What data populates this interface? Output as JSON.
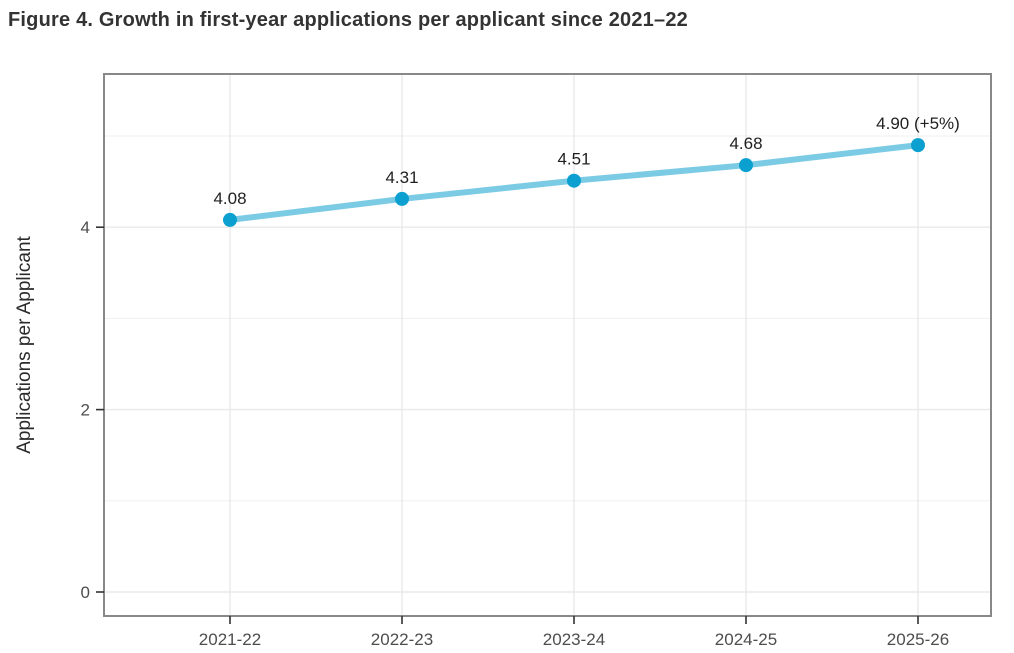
{
  "figure_title": "Figure 4. Growth in first-year applications per applicant since 2021–22",
  "chart_data": {
    "type": "line",
    "title": "Figure 4. Growth in first-year applications per applicant since 2021–22",
    "categories": [
      "2021-22",
      "2022-23",
      "2023-24",
      "2024-25",
      "2025-26"
    ],
    "series": [
      {
        "name": "Applications per Applicant",
        "values": [
          4.08,
          4.31,
          4.51,
          4.68,
          4.9
        ]
      }
    ],
    "point_labels": [
      "4.08",
      "4.31",
      "4.51",
      "4.68",
      "4.90 (+5%)"
    ],
    "xlabel": "",
    "ylabel": "Applications per Applicant",
    "ylim": [
      0,
      5.5
    ],
    "yticks": [
      0,
      2,
      4
    ],
    "y_minor_gridlines": [
      1,
      3,
      5
    ],
    "grid": true,
    "legend": "none",
    "colors": {
      "line": "#7CCBE4",
      "point": "#0BA0CF",
      "grid_major": "#e9e9e9",
      "grid_minor": "#f2f2f2",
      "panel_border": "#888888",
      "tick_mark": "#333333",
      "axis_text": "#4d4d4d",
      "axis_title": "#2b2b2b",
      "label_text": "#1f1f1f"
    }
  }
}
